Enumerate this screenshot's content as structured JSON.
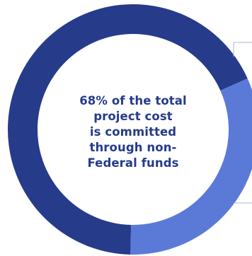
{
  "chart_data": {
    "type": "pie",
    "variant": "donut",
    "slices": [
      {
        "value": 68,
        "color": "#263b8a"
      },
      {
        "value": 32,
        "color": "#5b7ad8"
      }
    ],
    "center_text_lines": [
      "68% of the total",
      "project cost",
      "is committed",
      "through non-",
      "Federal funds"
    ],
    "center_text_color": "#263b8a",
    "leader_line_color": "#a9b4d6"
  }
}
